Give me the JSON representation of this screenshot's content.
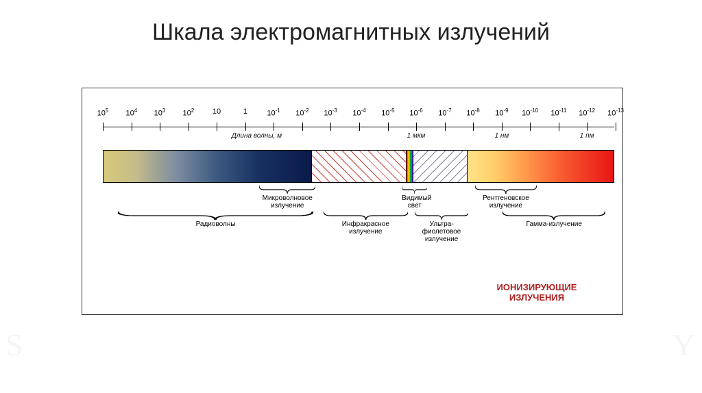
{
  "title": "Шкала электромагнитных излучений",
  "axis": {
    "ticks": [
      {
        "p": 0.0,
        "base": "10",
        "exp": "5"
      },
      {
        "p": 0.056,
        "base": "10",
        "exp": "4"
      },
      {
        "p": 0.111,
        "base": "10",
        "exp": "3"
      },
      {
        "p": 0.167,
        "base": "10",
        "exp": "2"
      },
      {
        "p": 0.222,
        "base": "10",
        "exp": ""
      },
      {
        "p": 0.278,
        "base": "1",
        "exp": ""
      },
      {
        "p": 0.333,
        "base": "10",
        "exp": "-1"
      },
      {
        "p": 0.389,
        "base": "10",
        "exp": "-2"
      },
      {
        "p": 0.444,
        "base": "10",
        "exp": "-3"
      },
      {
        "p": 0.5,
        "base": "10",
        "exp": "-4"
      },
      {
        "p": 0.556,
        "base": "10",
        "exp": "-5"
      },
      {
        "p": 0.611,
        "base": "10",
        "exp": "-6"
      },
      {
        "p": 0.667,
        "base": "10",
        "exp": "-7"
      },
      {
        "p": 0.722,
        "base": "10",
        "exp": "-8"
      },
      {
        "p": 0.778,
        "base": "10",
        "exp": "-9"
      },
      {
        "p": 0.833,
        "base": "10",
        "exp": "-10"
      },
      {
        "p": 0.889,
        "base": "10",
        "exp": "-11"
      },
      {
        "p": 0.944,
        "base": "10",
        "exp": "-12"
      },
      {
        "p": 1.0,
        "base": "10",
        "exp": "-13"
      }
    ],
    "sublabels": [
      {
        "p": 0.3,
        "text": "Длина волны, м"
      },
      {
        "p": 0.611,
        "text": "1 мкм"
      },
      {
        "p": 0.778,
        "text": "1 нм"
      },
      {
        "p": 0.944,
        "text": "1 пм"
      }
    ]
  },
  "segments": {
    "radio": {
      "flex": 41.0
    },
    "ir": {
      "flex": 18.5
    },
    "visible": {
      "flex": 1.2
    },
    "uv": {
      "flex": 10.5
    },
    "xgamma": {
      "flex": 28.8
    }
  },
  "braces_top": [
    {
      "left_pct": 30.5,
      "width_pct": 11.0,
      "label": "Микроволновое",
      "label2": "излучение"
    },
    {
      "left_pct": 58.3,
      "width_pct": 5.0,
      "label": "Видимый",
      "label2": "свет"
    },
    {
      "left_pct": 72.6,
      "width_pct": 12.0,
      "label": "Рентгеновское",
      "label2": "излучение"
    }
  ],
  "braces_bottom": [
    {
      "left_pct": 3.0,
      "width_pct": 38.0,
      "label": "Радиоволны"
    },
    {
      "left_pct": 43.0,
      "width_pct": 16.5,
      "label": "Инфракрасное",
      "label2": "излучение"
    },
    {
      "left_pct": 60.8,
      "width_pct": 10.5,
      "label": "Ультра-",
      "label2": "фиолетовое",
      "label3": "излучение"
    },
    {
      "left_pct": 78.0,
      "width_pct": 20.0,
      "label": "Гамма-излучение"
    }
  ],
  "ionizing": {
    "line1": "ИОНИЗИРУЮЩИЕ",
    "line2": "ИЗЛУЧЕНИЯ"
  },
  "colors": {
    "ionizing": "#b02020",
    "border": "#333333"
  }
}
